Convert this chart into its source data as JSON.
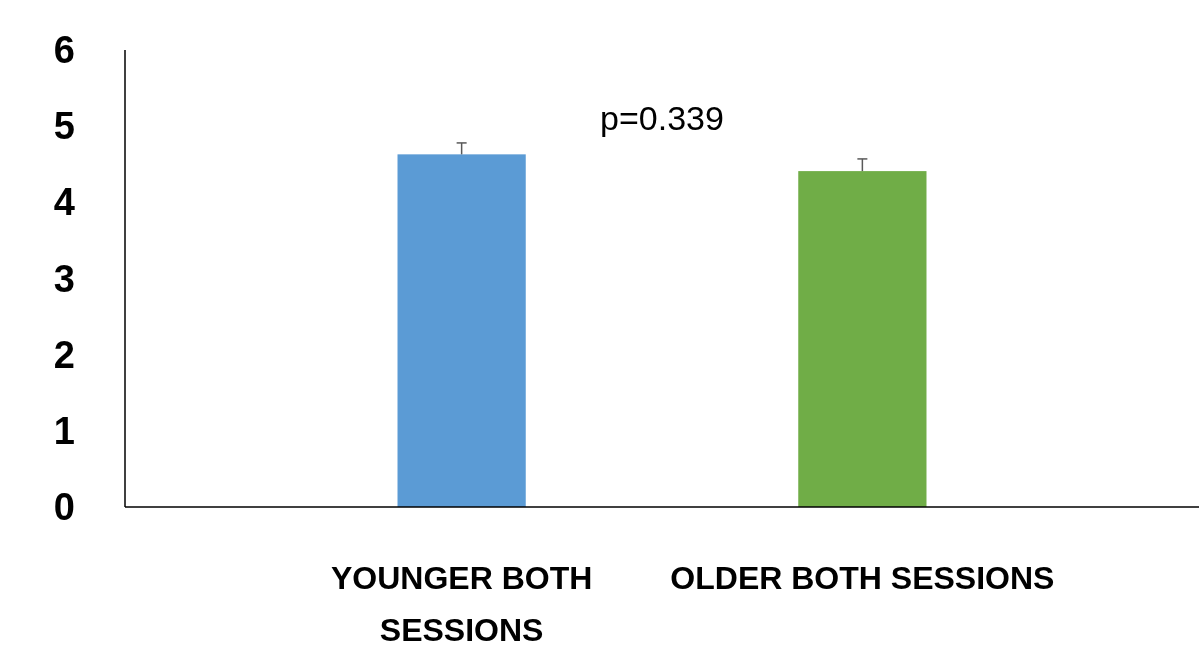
{
  "chart_data": {
    "type": "bar",
    "categories": [
      "YOUNGER BOTH SESSIONS",
      "OLDER BOTH SESSIONS"
    ],
    "values": [
      4.63,
      4.41
    ],
    "colors": [
      "#5b9bd5",
      "#70ad47"
    ],
    "errors": [
      [
        4.63,
        4.78
      ],
      [
        4.41,
        4.57
      ]
    ],
    "ylim": [
      0,
      6
    ],
    "yticks": [
      0,
      1,
      2,
      3,
      4,
      5,
      6
    ],
    "annotations": [
      "p=0.339"
    ]
  }
}
